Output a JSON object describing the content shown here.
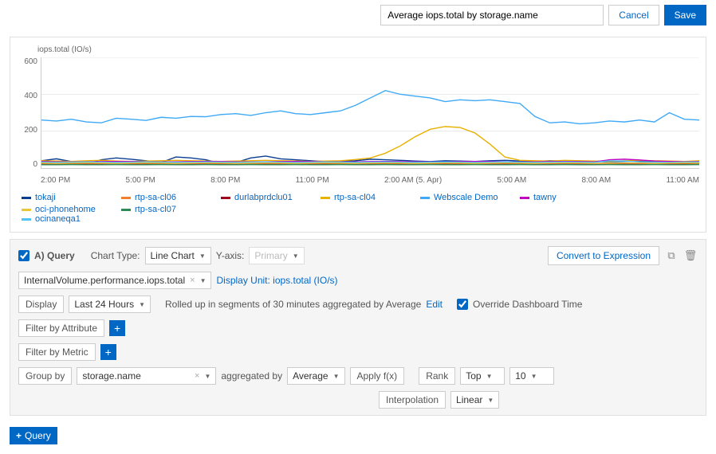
{
  "header": {
    "title": "Average iops.total by storage.name",
    "cancel": "Cancel",
    "save": "Save"
  },
  "chart": {
    "y_label": "iops.total (IO/s)",
    "ylim": [
      0,
      600
    ],
    "y_ticks": [
      "600",
      "400",
      "200",
      "0"
    ],
    "x_ticks": [
      "2:00 PM",
      "5:00 PM",
      "8:00 PM",
      "11:00 PM",
      "2:00 AM (5. Apr)",
      "5:00 AM",
      "8:00 AM",
      "11:00 AM"
    ],
    "background": "#ffffff",
    "axis_color": "#cccccc",
    "grid_color": "#e8e8e8",
    "tick_fontsize": 10,
    "series": [
      {
        "name": "tokaji",
        "color": "#0a3d91",
        "values": [
          40,
          50,
          35,
          20,
          45,
          55,
          48,
          40,
          30,
          60,
          55,
          45,
          25,
          30,
          55,
          65,
          50,
          45,
          40,
          35,
          38,
          40,
          48,
          45,
          42,
          38,
          35,
          40,
          38,
          36,
          40,
          42,
          38,
          36,
          40,
          38,
          36,
          35,
          34,
          36,
          38,
          36,
          34,
          36,
          35
        ]
      },
      {
        "name": "rtp-sa-cl06",
        "color": "#f08030",
        "values": [
          28,
          26,
          28,
          27,
          26,
          25,
          26,
          28,
          27,
          26,
          25,
          26,
          27,
          26,
          25,
          26,
          27,
          26,
          25,
          26,
          27,
          26,
          25,
          26,
          27,
          26,
          25,
          26,
          27,
          26,
          25,
          26,
          27,
          26,
          25,
          26,
          27,
          26,
          25,
          26,
          27,
          26,
          25,
          26,
          27
        ]
      },
      {
        "name": "durlabprdclu01",
        "color": "#a00020",
        "values": [
          22,
          23,
          22,
          21,
          22,
          24,
          23,
          22,
          21,
          22,
          23,
          22,
          21,
          22,
          23,
          22,
          21,
          22,
          23,
          22,
          21,
          22,
          23,
          22,
          21,
          22,
          23,
          22,
          21,
          22,
          23,
          22,
          21,
          22,
          23,
          22,
          21,
          22,
          23,
          22,
          21,
          22,
          23,
          22,
          21
        ]
      },
      {
        "name": "rtp-sa-cl04",
        "color": "#e8b000",
        "values": [
          40,
          38,
          36,
          40,
          42,
          38,
          36,
          38,
          40,
          42,
          40,
          38,
          36,
          38,
          40,
          42,
          40,
          38,
          36,
          38,
          40,
          46,
          55,
          80,
          120,
          170,
          210,
          225,
          220,
          190,
          130,
          60,
          42,
          40,
          38,
          42,
          40,
          38,
          36,
          40,
          42,
          40,
          38,
          36,
          40
        ]
      },
      {
        "name": "Webscale Demo",
        "color": "#3fa9f5",
        "values": [
          260,
          255,
          265,
          250,
          245,
          270,
          265,
          258,
          275,
          270,
          280,
          278,
          290,
          295,
          285,
          300,
          310,
          295,
          290,
          300,
          310,
          340,
          380,
          420,
          400,
          390,
          380,
          360,
          370,
          365,
          370,
          360,
          350,
          280,
          245,
          250,
          240,
          245,
          255,
          250,
          260,
          250,
          300,
          265,
          260
        ]
      },
      {
        "name": "tawny",
        "color": "#c000c0",
        "values": [
          35,
          34,
          33,
          34,
          35,
          36,
          35,
          34,
          33,
          34,
          35,
          36,
          35,
          34,
          33,
          34,
          35,
          36,
          35,
          34,
          33,
          34,
          35,
          36,
          35,
          34,
          33,
          34,
          35,
          36,
          35,
          34,
          33,
          34,
          35,
          36,
          35,
          34,
          45,
          48,
          44,
          38,
          36,
          34,
          35
        ]
      },
      {
        "name": "ocinaneqa1",
        "color": "#4fc3f7",
        "values": [
          32,
          31,
          32,
          33,
          32,
          31,
          32,
          33,
          32,
          31,
          32,
          33,
          32,
          31,
          32,
          33,
          32,
          31,
          32,
          33,
          32,
          31,
          32,
          33,
          32,
          31,
          32,
          33,
          32,
          31,
          32,
          33,
          32,
          31,
          32,
          33,
          32,
          31,
          40,
          38,
          34,
          32,
          31,
          32,
          33
        ]
      },
      {
        "name": "oci-phonehome",
        "color": "#e8c838",
        "values": [
          26,
          25,
          26,
          27,
          26,
          25,
          26,
          27,
          26,
          25,
          26,
          27,
          26,
          25,
          26,
          27,
          26,
          25,
          26,
          27,
          26,
          25,
          26,
          27,
          26,
          25,
          26,
          27,
          26,
          25,
          26,
          27,
          26,
          25,
          26,
          27,
          26,
          25,
          26,
          27,
          26,
          25,
          26,
          27,
          26
        ]
      },
      {
        "name": "rtp-sa-cl07",
        "color": "#2e8b57",
        "values": [
          18,
          18,
          19,
          18,
          18,
          19,
          18,
          18,
          19,
          18,
          18,
          19,
          18,
          18,
          19,
          18,
          18,
          19,
          18,
          18,
          19,
          18,
          18,
          19,
          18,
          18,
          19,
          18,
          18,
          19,
          18,
          18,
          19,
          18,
          18,
          19,
          18,
          18,
          19,
          18,
          18,
          19,
          18,
          18,
          19
        ]
      }
    ]
  },
  "query": {
    "a_label": "A) Query",
    "chart_type_label": "Chart Type:",
    "chart_type": "Line Chart",
    "yaxis_label": "Y-axis:",
    "yaxis": "Primary",
    "convert": "Convert to Expression",
    "metric": "InternalVolume.performance.iops.total",
    "display_unit_label": "Display Unit: iops.total (IO/s)",
    "display_label": "Display",
    "time_range": "Last 24 Hours",
    "rollup_text": "Rolled up in segments of 30 minutes aggregated by Average",
    "edit": "Edit",
    "override": "Override Dashboard Time",
    "filter_attr": "Filter by Attribute",
    "filter_metric": "Filter by Metric",
    "group_by": "Group by",
    "group_value": "storage.name",
    "aggregated_by": "aggregated by",
    "agg_value": "Average",
    "apply_fx": "Apply f(x)",
    "rank_label": "Rank",
    "rank_dir": "Top",
    "rank_n": "10",
    "interp_label": "Interpolation",
    "interp_value": "Linear"
  },
  "add_query": "Query"
}
